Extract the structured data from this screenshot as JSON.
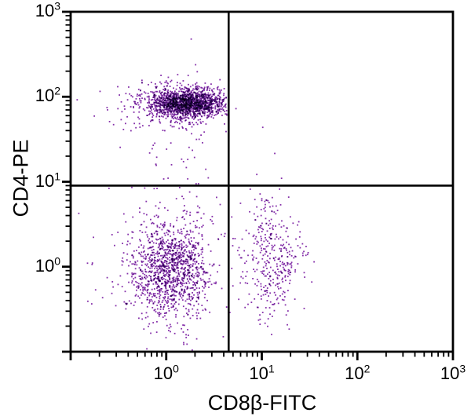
{
  "chart_data": {
    "type": "scatter",
    "title": "",
    "xlabel": "CD8β-FITC",
    "ylabel": "CD4-PE",
    "x_scale": "log",
    "y_scale": "log",
    "x_log_range": [
      -1,
      3
    ],
    "y_log_range": [
      -1,
      3
    ],
    "tick_label_base": "10",
    "x_tick_exponents": [
      0,
      1,
      2,
      3
    ],
    "y_tick_exponents": [
      0,
      1,
      2,
      3
    ],
    "grid": false,
    "legend": "none",
    "quadrant_gate": {
      "x": 4.5,
      "y": 9
    },
    "dot": {
      "color": "#8530aa",
      "size": 1.8
    },
    "frame_color": "#000000",
    "seed": 7,
    "clusters": [
      {
        "name": "cd4-single-positive-core",
        "n": 1500,
        "cx": 0.22,
        "cy": 1.93,
        "sx": 0.19,
        "sy": 0.08,
        "xmax": 0.64
      },
      {
        "name": "cd4-single-positive-halo",
        "n": 320,
        "cx": 0.1,
        "cy": 1.9,
        "sx": 0.34,
        "sy": 0.155,
        "xmax": 0.64
      },
      {
        "name": "cd4-to-dn-bridge",
        "n": 36,
        "cx": 0.18,
        "cy": 1.38,
        "sx": 0.2,
        "sy": 0.33,
        "xmax": 0.64
      },
      {
        "name": "double-negative-core",
        "n": 1050,
        "cx": 0.05,
        "cy": -0.02,
        "sx": 0.2,
        "sy": 0.28
      },
      {
        "name": "double-negative-halo",
        "n": 280,
        "cx": 0.0,
        "cy": -0.05,
        "sx": 0.34,
        "sy": 0.44
      },
      {
        "name": "cd8-single-positive-core",
        "n": 300,
        "cx": 1.13,
        "cy": 0.1,
        "sx": 0.15,
        "sy": 0.32
      },
      {
        "name": "cd8-single-positive-halo",
        "n": 70,
        "cx": 1.08,
        "cy": 0.05,
        "sx": 0.24,
        "sy": 0.46
      }
    ],
    "extra_points_log10": [
      [
        0.73,
        1.86
      ],
      [
        1.01,
        1.64
      ],
      [
        0.12,
        2.26
      ]
    ]
  }
}
